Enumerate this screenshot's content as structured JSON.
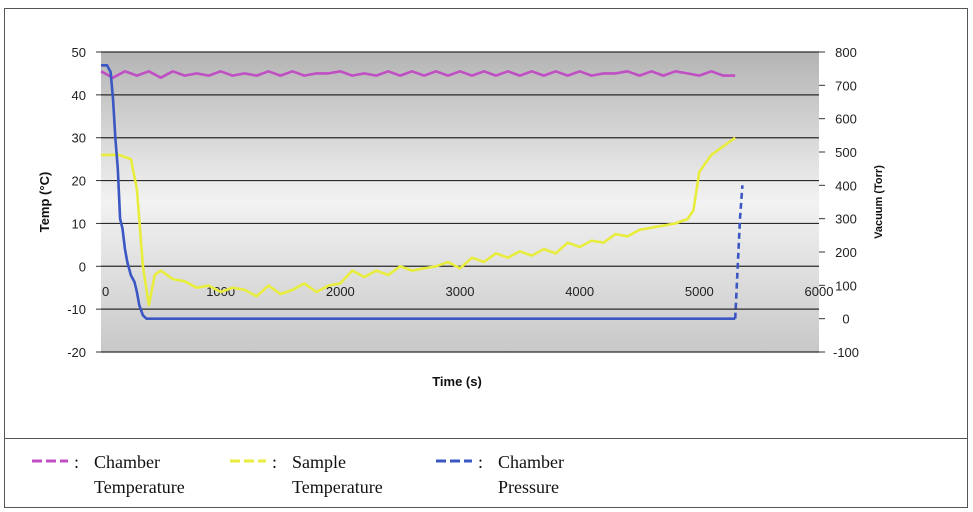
{
  "chart_data": {
    "type": "line",
    "title": "",
    "xlabel": "Time (s)",
    "ylabel_left": "Temp (°C)",
    "ylabel_right": "Vacuum (Torr)",
    "xlim": [
      0,
      6000
    ],
    "ylim_left": [
      -20,
      50
    ],
    "ylim_right": [
      -100,
      800
    ],
    "x_ticks": [
      "0",
      "1000",
      "2000",
      "3000",
      "4000",
      "5000",
      "6000"
    ],
    "y_left_ticks": [
      "50",
      "40",
      "30",
      "20",
      "10",
      "0",
      "-10",
      "-20"
    ],
    "y_right_ticks": [
      "800",
      "700",
      "600",
      "500",
      "400",
      "300",
      "200",
      "100",
      "0",
      "-100"
    ],
    "grid": true,
    "legend_position": "bottom",
    "series": [
      {
        "name": "Chamber Temperature",
        "axis": "left",
        "color": "#c04fc4",
        "style": "solid",
        "x": [
          0,
          100,
          200,
          300,
          400,
          500,
          600,
          700,
          800,
          900,
          1000,
          1100,
          1200,
          1300,
          1400,
          1500,
          1600,
          1700,
          1800,
          1900,
          2000,
          2100,
          2200,
          2300,
          2400,
          2500,
          2600,
          2700,
          2800,
          2900,
          3000,
          3100,
          3200,
          3300,
          3400,
          3500,
          3600,
          3700,
          3800,
          3900,
          4000,
          4100,
          4200,
          4300,
          4400,
          4500,
          4600,
          4700,
          4800,
          4900,
          5000,
          5100,
          5200,
          5300
        ],
        "y": [
          45.5,
          44,
          45.5,
          44.5,
          45.5,
          44,
          45.5,
          44.5,
          45,
          44.5,
          45.5,
          44.5,
          45,
          44.5,
          45.5,
          44.5,
          45.5,
          44.5,
          45,
          45,
          45.5,
          44.5,
          45,
          44.5,
          45.5,
          44.5,
          45.5,
          44.5,
          45.5,
          44.5,
          45.5,
          44.5,
          45.5,
          44.5,
          45.5,
          44.5,
          45.5,
          44.5,
          45.5,
          44.5,
          45.5,
          44.5,
          45,
          45,
          45.5,
          44.5,
          45.5,
          44.5,
          45.5,
          45,
          44.5,
          45.5,
          44.5,
          44.5
        ]
      },
      {
        "name": "Sample Temperature",
        "axis": "left",
        "color": "#e8ec3c",
        "style": "solid",
        "x": [
          0,
          150,
          250,
          300,
          350,
          400,
          450,
          500,
          600,
          700,
          800,
          900,
          1000,
          1100,
          1200,
          1300,
          1400,
          1500,
          1600,
          1700,
          1800,
          1900,
          2000,
          2100,
          2200,
          2300,
          2400,
          2500,
          2600,
          2700,
          2800,
          2900,
          3000,
          3100,
          3200,
          3300,
          3400,
          3500,
          3600,
          3700,
          3800,
          3900,
          4000,
          4100,
          4200,
          4300,
          4400,
          4500,
          4600,
          4700,
          4800,
          4900,
          4950,
          5000,
          5100,
          5200,
          5300
        ],
        "y": [
          26,
          26,
          25,
          18,
          0,
          -9,
          -2,
          -1,
          -3,
          -3.5,
          -5,
          -4.5,
          -6,
          -5,
          -5.5,
          -7,
          -4.5,
          -6.5,
          -5.5,
          -4,
          -6,
          -4.5,
          -4,
          -1,
          -2.5,
          -1,
          -2,
          0,
          -1,
          -0.5,
          0,
          1,
          -0.5,
          2,
          1,
          3,
          2,
          3.5,
          2.5,
          4,
          3,
          5.5,
          4.5,
          6,
          5.5,
          7.5,
          7,
          8.5,
          9,
          9.5,
          10,
          11,
          13,
          22,
          26,
          28,
          30
        ]
      },
      {
        "name": "Chamber Pressure",
        "axis": "right",
        "color": "#3a57c4",
        "style": "solid",
        "x": [
          0,
          50,
          80,
          100,
          120,
          140,
          160,
          180,
          200,
          220,
          250,
          280,
          300,
          320,
          350,
          380,
          400,
          500,
          1000,
          2000,
          3000,
          4000,
          5000,
          5300
        ],
        "y": [
          760,
          760,
          740,
          660,
          540,
          450,
          300,
          270,
          210,
          170,
          130,
          110,
          80,
          40,
          10,
          0,
          0,
          0,
          0,
          0,
          0,
          0,
          0,
          0
        ]
      },
      {
        "name": "Chamber Pressure (vent)",
        "axis": "right",
        "color": "#3a57c4",
        "style": "dashed",
        "x": [
          5300,
          5320,
          5340,
          5360
        ],
        "y": [
          0,
          150,
          300,
          400
        ]
      }
    ]
  },
  "legend": [
    {
      "name": "chamber-temperature",
      "label_line1": "Chamber",
      "label_line2": "Temperature",
      "color": "#c04fc4"
    },
    {
      "name": "sample-temperature",
      "label_line1": "Sample",
      "label_line2": "Temperature",
      "color": "#e8ec3c"
    },
    {
      "name": "chamber-pressure",
      "label_line1": "Chamber",
      "label_line2": "Pressure",
      "color": "#3a57c4"
    }
  ],
  "legend_separator": ":"
}
